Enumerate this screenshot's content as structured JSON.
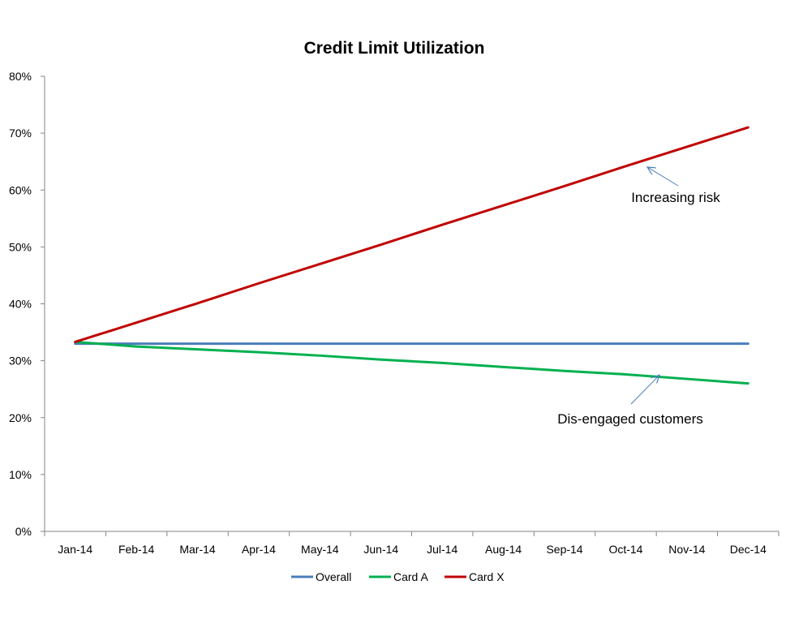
{
  "chart_data": {
    "type": "line",
    "title": "Credit Limit Utilization",
    "xlabel": "",
    "ylabel": "",
    "categories": [
      "Jan-14",
      "Feb-14",
      "Mar-14",
      "Apr-14",
      "May-14",
      "Jun-14",
      "Jul-14",
      "Aug-14",
      "Sep-14",
      "Oct-14",
      "Nov-14",
      "Dec-14"
    ],
    "y_ticks": [
      "0%",
      "10%",
      "20%",
      "30%",
      "40%",
      "50%",
      "60%",
      "70%",
      "80%"
    ],
    "ylim": [
      0,
      80
    ],
    "y_unit": "%",
    "grid": false,
    "legend_position": "bottom",
    "series": [
      {
        "name": "Overall",
        "color": "#4a7ebb",
        "values": [
          33,
          33,
          33,
          33,
          33,
          33,
          33,
          33,
          33,
          33,
          33,
          33
        ]
      },
      {
        "name": "Card A",
        "color": "#00b050",
        "values": [
          33.3,
          32.5,
          32,
          31.5,
          30.9,
          30.2,
          29.6,
          28.9,
          28.2,
          27.6,
          26.8,
          26
        ]
      },
      {
        "name": "Card X",
        "color": "#c00000",
        "values": [
          33.3,
          36.7,
          40.1,
          43.6,
          47.0,
          50.4,
          53.9,
          57.3,
          60.7,
          64.2,
          67.6,
          71.0
        ]
      }
    ],
    "annotations": [
      {
        "text": "Increasing risk",
        "series": "Card X",
        "category": "Oct-14"
      },
      {
        "text": "Dis-engaged customers",
        "series": "Card A",
        "category": "Nov-14"
      }
    ]
  }
}
